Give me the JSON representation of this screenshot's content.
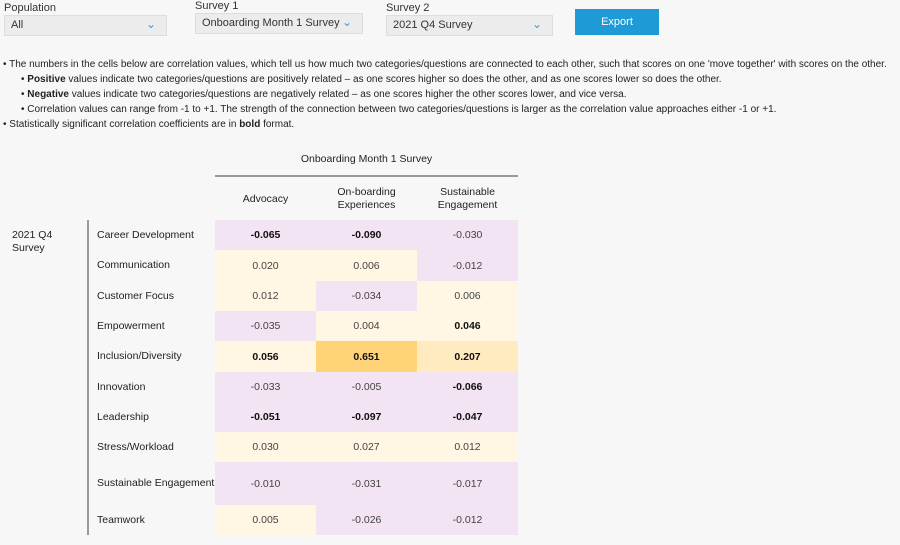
{
  "filters": {
    "population": {
      "label": "Population",
      "value": "All"
    },
    "survey1": {
      "label": "Survey 1",
      "value": "Onboarding Month 1 Survey"
    },
    "survey2": {
      "label": "Survey 2",
      "value": "2021 Q4 Survey"
    },
    "export_label": "Export"
  },
  "notes": {
    "intro": "• The numbers in the cells below are correlation values, which tell us how much two categories/questions are connected to each other, such that scores on one 'move together' with scores on the other.",
    "pos_bold": "Positive",
    "pos_rest": " values indicate two categories/questions are positively related – as one scores higher so does the other, and as one scores lower so does the other.",
    "neg_bold": "Negative",
    "neg_rest": " values indicate two categories/questions are negatively related – as one scores higher the other scores lower, and vice versa.",
    "range": "Correlation values can range from -1 to +1. The strength of the connection between two categories/questions is larger as the correlation value approaches either -1 or +1.",
    "sig_pre": "• Statistically significant correlation coefficients are in ",
    "sig_bold": "bold",
    "sig_post": " format."
  },
  "matrix": {
    "survey1_title": "Onboarding Month 1 Survey",
    "survey2_title": "2021 Q4 Survey",
    "columns": [
      "Advocacy",
      "On-boarding Experiences",
      "Sustainable Engagement"
    ],
    "colors": {
      "negative": "#f3e4f3",
      "positive": "#fff6e4",
      "mid": "#ffebbf",
      "high": "#ffd478"
    },
    "rows": [
      {
        "label": "Career Development",
        "values": [
          "-0.065",
          "-0.090",
          "-0.030"
        ],
        "bold": [
          true,
          true,
          false
        ]
      },
      {
        "label": "Communication",
        "values": [
          "0.020",
          "0.006",
          "-0.012"
        ],
        "bold": [
          false,
          false,
          false
        ]
      },
      {
        "label": "Customer Focus",
        "values": [
          "0.012",
          "-0.034",
          "0.006"
        ],
        "bold": [
          false,
          false,
          false
        ]
      },
      {
        "label": "Empowerment",
        "values": [
          "-0.035",
          "0.004",
          "0.046"
        ],
        "bold": [
          false,
          false,
          true
        ]
      },
      {
        "label": "Inclusion/Diversity",
        "values": [
          "0.056",
          "0.651",
          "0.207"
        ],
        "bold": [
          true,
          true,
          true
        ]
      },
      {
        "label": "Innovation",
        "values": [
          "-0.033",
          "-0.005",
          "-0.066"
        ],
        "bold": [
          false,
          false,
          true
        ]
      },
      {
        "label": "Leadership",
        "values": [
          "-0.051",
          "-0.097",
          "-0.047"
        ],
        "bold": [
          true,
          true,
          true
        ]
      },
      {
        "label": "Stress/Workload",
        "values": [
          "0.030",
          "0.027",
          "0.012"
        ],
        "bold": [
          false,
          false,
          false
        ]
      },
      {
        "label": "Sustainable Engagement",
        "values": [
          "-0.010",
          "-0.031",
          "-0.017"
        ],
        "bold": [
          false,
          false,
          false
        ]
      },
      {
        "label": "Teamwork",
        "values": [
          "0.005",
          "-0.026",
          "-0.012"
        ],
        "bold": [
          false,
          false,
          false
        ]
      }
    ]
  }
}
